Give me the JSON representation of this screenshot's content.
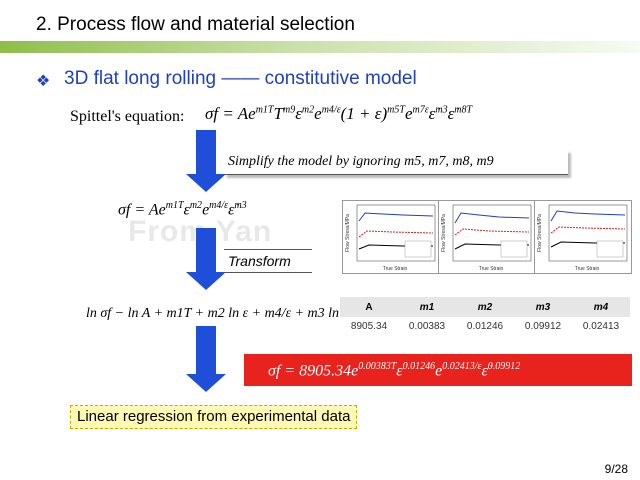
{
  "slide": {
    "title": "2. Process flow and material selection",
    "subtitle": "3D flat long rolling —— constitutive model",
    "page_number": "9/28"
  },
  "spittel": {
    "label": "Spittel's equation:",
    "lhs": "σf = Ae",
    "e1": "m1T",
    "t1": "T",
    "e2": "m9",
    "t2": "ε",
    "e3": "m2",
    "t3": "e",
    "e4": "m4/ε",
    "t4": "(1 + ε)",
    "e5": "m5T",
    "t5": "e",
    "e6": "m7ε",
    "t6": "ε̇",
    "e7": "m3",
    "t7": "ε̇",
    "e8": "m8T"
  },
  "simplify_note": "Simplify the model by ignoring m5, m7, m8, m9",
  "simplified": {
    "lhs": "σf = Ae",
    "e1": "m1T",
    "t1": "ε",
    "e2": "m2",
    "t2": "e",
    "e3": "m4/ε",
    "t3": "ε̇",
    "e4": "m3"
  },
  "watermark": "From Yan",
  "transform_note": "Transform",
  "linear_eq": "ln σf − ln A + m1T + m2 ln ε + m4/ε + m3 ln ε̇",
  "coefficients": {
    "headers": [
      "A",
      "m1",
      "m2",
      "m3",
      "m4"
    ],
    "values": [
      "8905.34",
      "0.00383",
      "0.01246",
      "0.09912",
      "0.02413"
    ]
  },
  "final": {
    "lhs": "σf = 8905.34e",
    "e1": "0.00383T",
    "t1": "ε",
    "e2": "0.01246",
    "t2": "e",
    "e3": "0.02413/ε",
    "t3": "ε̇",
    "e4": "0.09912"
  },
  "regression_note": "Linear regression from experimental data",
  "plots": [
    {
      "xlabel": "True Strain",
      "ylabel": "Flow Stress/MPa"
    },
    {
      "xlabel": "True Strain",
      "ylabel": "Flow Stress/MPa"
    },
    {
      "xlabel": "True Strain",
      "ylabel": "Flow Stress/MPa"
    }
  ],
  "colors": {
    "accent_blue": "#1f3fbf",
    "arrow_blue": "#1f4fd8",
    "final_red": "#e8221c",
    "highlight_yellow": "#fff9b3"
  }
}
